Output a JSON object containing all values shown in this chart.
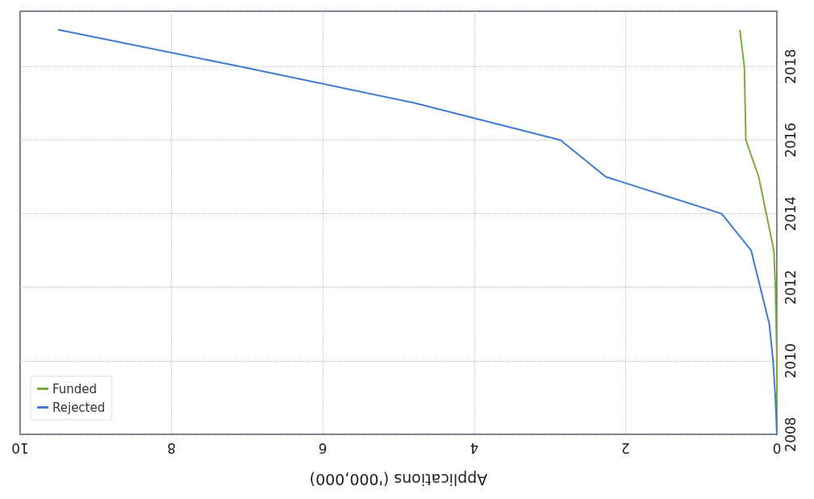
{
  "chart_data": {
    "type": "line",
    "xlabel": "Applications ('000,000)",
    "series": [
      {
        "name": "Funded",
        "color": "#7cab3c",
        "x": [
          0,
          0,
          0,
          0.01,
          0.02,
          0.04,
          0.14,
          0.24,
          0.41,
          0.42,
          0.43,
          0.49
        ],
        "values": [
          2008,
          2009,
          2010,
          2011,
          2012,
          2013,
          2014,
          2015,
          2016,
          2017,
          2018,
          2019
        ]
      },
      {
        "name": "Rejected",
        "color": "#3f7bd2",
        "x": [
          0,
          0.02,
          0.05,
          0.1,
          0.22,
          0.34,
          0.73,
          2.26,
          2.86,
          4.77,
          7.1,
          9.5
        ],
        "values": [
          2008,
          2009,
          2010,
          2011,
          2012,
          2013,
          2014,
          2015,
          2016,
          2017,
          2018,
          2019
        ]
      }
    ],
    "ylim": [
      2008,
      2019.5
    ],
    "yticks": [
      2008,
      2010,
      2012,
      2014,
      2016,
      2018
    ],
    "xlim": [
      10,
      0
    ],
    "xticks": [
      0,
      2,
      4,
      6,
      8,
      10
    ],
    "grid": true,
    "legend": "bottom left",
    "marker": "none",
    "line_style": "solid"
  }
}
